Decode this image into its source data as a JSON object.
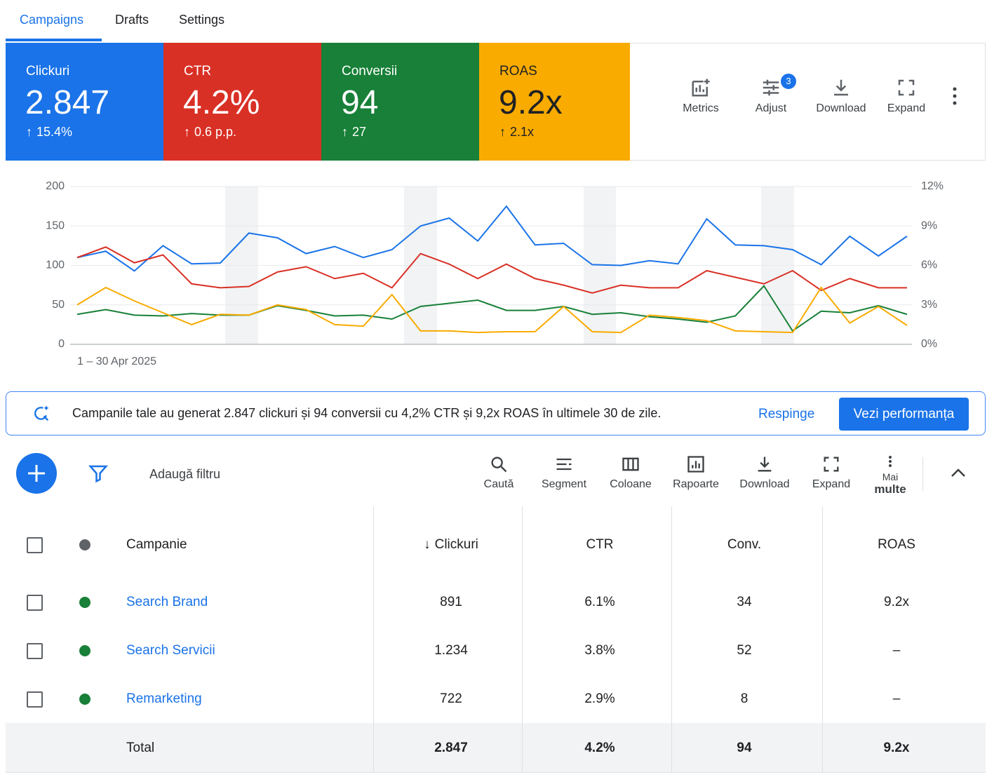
{
  "tabs": [
    "Campaigns",
    "Drafts",
    "Settings"
  ],
  "scorecards": [
    {
      "label": "Clickuri",
      "value": "2.847",
      "change": "15.4%"
    },
    {
      "label": "CTR",
      "value": "4.2%",
      "change": "0.6 p.p."
    },
    {
      "label": "Conversii",
      "value": "94",
      "change": "27"
    },
    {
      "label": "ROAS",
      "value": "9.2x",
      "change": "2.1x"
    }
  ],
  "chart_tools": [
    "Metrics",
    "Adjust",
    "Download",
    "Expand"
  ],
  "adjust_badge": "3",
  "chart_data": {
    "type": "line",
    "xlabel": "1 – 30 Apr 2025",
    "x": [
      1,
      2,
      3,
      4,
      5,
      6,
      7,
      8,
      9,
      10,
      11,
      12,
      13,
      14,
      15,
      16,
      17,
      18,
      19,
      20,
      21,
      22,
      23,
      24,
      25,
      26,
      27,
      28,
      29,
      30
    ],
    "xlim": [
      1,
      30
    ],
    "ylim": [
      0,
      200
    ],
    "yticks": [
      0,
      50,
      100,
      150,
      200
    ],
    "y2lim": [
      0,
      12
    ],
    "y2ticks": [
      {
        "value": 0,
        "label": "0%"
      },
      {
        "value": 3,
        "label": "3%"
      },
      {
        "value": 6,
        "label": "6%"
      },
      {
        "value": 9,
        "label": "9%"
      },
      {
        "value": 12,
        "label": "12%"
      }
    ],
    "grid": true,
    "series": [
      {
        "color": "#1a73e8",
        "values": [
          110,
          118,
          93,
          125,
          102,
          103,
          141,
          135,
          115,
          124,
          110,
          120,
          150,
          160,
          131,
          175,
          126,
          128,
          101,
          100,
          106,
          102,
          159,
          126,
          125,
          120,
          101,
          137,
          112,
          137
        ]
      },
      {
        "color": "#d93025",
        "axis": "y2",
        "values": [
          6.6,
          7.4,
          6.2,
          6.8,
          4.6,
          4.3,
          4.4,
          5.5,
          5.9,
          5.0,
          5.4,
          4.3,
          6.9,
          6.1,
          5.0,
          6.1,
          5.0,
          4.5,
          3.9,
          4.5,
          4.3,
          4.3,
          5.6,
          5.1,
          4.6,
          5.6,
          4.1,
          5.0,
          4.3,
          4.3
        ]
      },
      {
        "color": "#188038",
        "values": [
          38,
          44,
          37,
          36,
          39,
          37,
          37,
          49,
          43,
          36,
          37,
          32,
          48,
          52,
          56,
          43,
          43,
          48,
          38,
          40,
          35,
          32,
          28,
          36,
          74,
          17,
          42,
          40,
          49,
          38
        ]
      },
      {
        "color": "#f9ab00",
        "values": [
          50,
          72,
          55,
          40,
          25,
          38,
          37,
          50,
          44,
          25,
          23,
          63,
          17,
          17,
          15,
          16,
          16,
          48,
          16,
          15,
          37,
          34,
          30,
          17,
          16,
          15,
          72,
          27,
          48,
          24
        ]
      }
    ]
  },
  "insight": {
    "text": "Campanile tale au generat 2.847 clickuri și 94 conversii cu 4,2% CTR și 9,2x ROAS în ultimele 30 de zile.",
    "dismiss": "Respinge",
    "action": "Vezi performanța"
  },
  "filter": "Adaugă filtru",
  "table_tools": [
    "Caută",
    "Segment",
    "Coloane",
    "Rapoarte",
    "Download",
    "Expand"
  ],
  "more": [
    "Mai",
    "multe"
  ],
  "table": {
    "headers": [
      "Campanie",
      "Clickuri",
      "CTR",
      "Conv.",
      "ROAS"
    ],
    "rows": [
      [
        "Search Brand",
        "891",
        "6.1%",
        "34",
        "9.2x"
      ],
      [
        "Search Servicii",
        "1.234",
        "3.8%",
        "52",
        "–"
      ],
      [
        "Remarketing",
        "722",
        "2.9%",
        "8",
        "–"
      ]
    ],
    "total": [
      "Total",
      "2.847",
      "4.2%",
      "94",
      "9.2x"
    ]
  }
}
